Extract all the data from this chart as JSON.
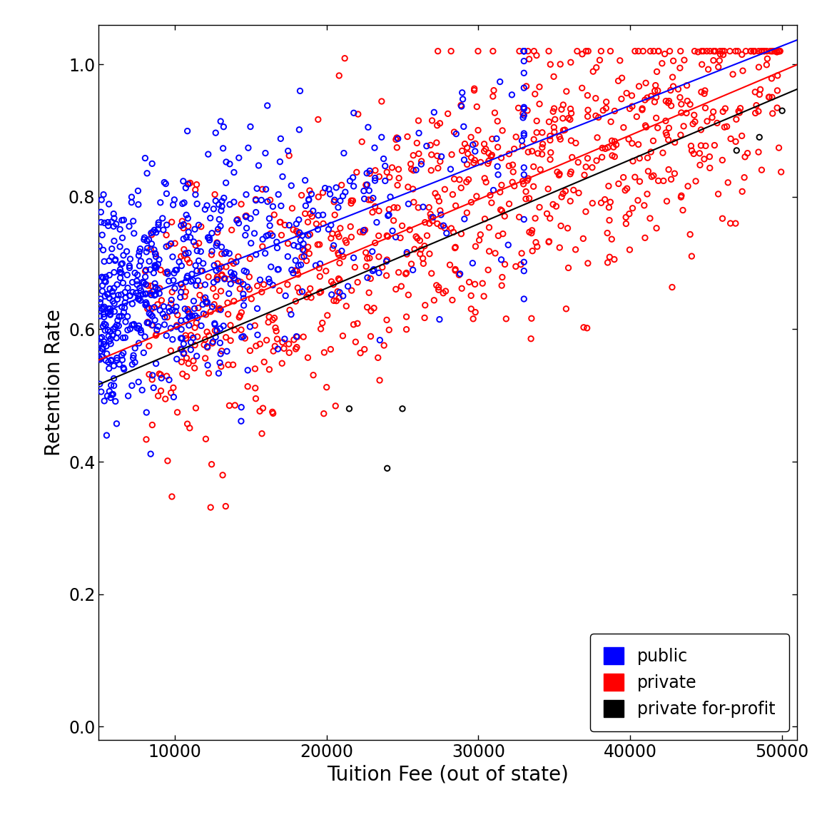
{
  "xlim": [
    5000,
    51000
  ],
  "ylim": [
    -0.02,
    1.06
  ],
  "xticks": [
    10000,
    20000,
    30000,
    40000,
    50000
  ],
  "yticks": [
    0.0,
    0.2,
    0.4,
    0.6,
    0.8,
    1.0
  ],
  "xlabel": "Tuition Fee (out of state)",
  "ylabel": "Retention Rate",
  "xlabel_fontsize": 20,
  "ylabel_fontsize": 20,
  "tick_fontsize": 17,
  "background_color": "#ffffff",
  "point_size": 28,
  "point_linewidth": 1.4,
  "colors": {
    "public": "#0000ff",
    "private": "#ff0000",
    "private_for_profit": "#000000"
  },
  "blue_line": {
    "intercept": 0.578,
    "slope": 9e-06
  },
  "red_line": {
    "intercept": 0.505,
    "slope": 9.7e-06
  },
  "black_line": {
    "intercept": 0.468,
    "slope": 9.7e-06
  },
  "legend_labels": [
    "public",
    "private",
    "private for-profit"
  ],
  "legend_colors": [
    "#0000ff",
    "#ff0000",
    "#000000"
  ],
  "seed": 42,
  "n_public": 650,
  "n_private": 900
}
